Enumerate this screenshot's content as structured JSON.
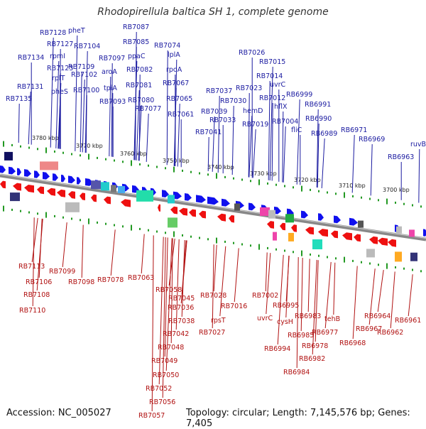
{
  "title": "Rhodopirellula baltica SH 1, complete genome",
  "footer": {
    "accession": "Accession: NC_005027",
    "stats": "Topology: circular; Length: 7,145,576 bp; Genes: 7,405"
  },
  "colors": {
    "forward": "#1010ee",
    "reverse": "#ee1010",
    "backbone": "#888888",
    "ticks": "#229922",
    "label_forward": "#1a1aa0",
    "label_reverse": "#b01010"
  },
  "scale_labels": [
    "3780 kbp",
    "3770 kbp",
    "3760 kbp",
    "3750 kbp",
    "3740 kbp",
    "3730 kbp",
    "3720 kbp",
    "3710 kbp",
    "3700 kbp"
  ],
  "forward_labels": [
    "RB7128",
    "pheT",
    "RB7087",
    "RB7127",
    "RB7134",
    "rpmI",
    "RB7104",
    "RB7085",
    "RB7074",
    "RB7123",
    "ppaC",
    "lplA",
    "RB7109",
    "RB7097",
    "RB7026",
    "rplT",
    "RB7102",
    "aroA",
    "RB7082",
    "rpoA",
    "RB7015",
    "RB7131",
    "pheS",
    "RB7100",
    "tpiA",
    "RB7081",
    "RB7067",
    "RB7014",
    "RB7135",
    "RB7093",
    "RB7080",
    "RB7065",
    "RB7037",
    "RB7023",
    "uvrC",
    "RB6999",
    "RB7077",
    "RB7030",
    "RB7012",
    "RB7061",
    "hemD",
    "RB7039",
    "RB6991",
    "hflX",
    "RB7033",
    "RB7019",
    "RB7004",
    "RB6990",
    "RB7041",
    "fliC",
    "RB6989",
    "RB6971",
    "RB6969",
    "ruvB",
    "RB6963"
  ],
  "reverse_labels": [
    "RB7113",
    "RB7099",
    "RB7106",
    "RB7098",
    "RB7108",
    "RB7078",
    "RB7063",
    "RB7110",
    "RB7058",
    "RB7045",
    "RB7028",
    "RB7002",
    "RB7036",
    "RB7016",
    "RB6995",
    "RB6983",
    "rpsT",
    "uvrC",
    "RB7038",
    "tehB",
    "RB6964",
    "RB6961",
    "cysH",
    "RB7027",
    "RB6967",
    "RB6962",
    "RB7042",
    "RB6985",
    "RB6977",
    "RB6968",
    "RB6978",
    "RB7048",
    "RB6994",
    "RB6982",
    "RB7049",
    "RB6984",
    "RB7050",
    "RB7052",
    "RB7056",
    "RB7057"
  ]
}
